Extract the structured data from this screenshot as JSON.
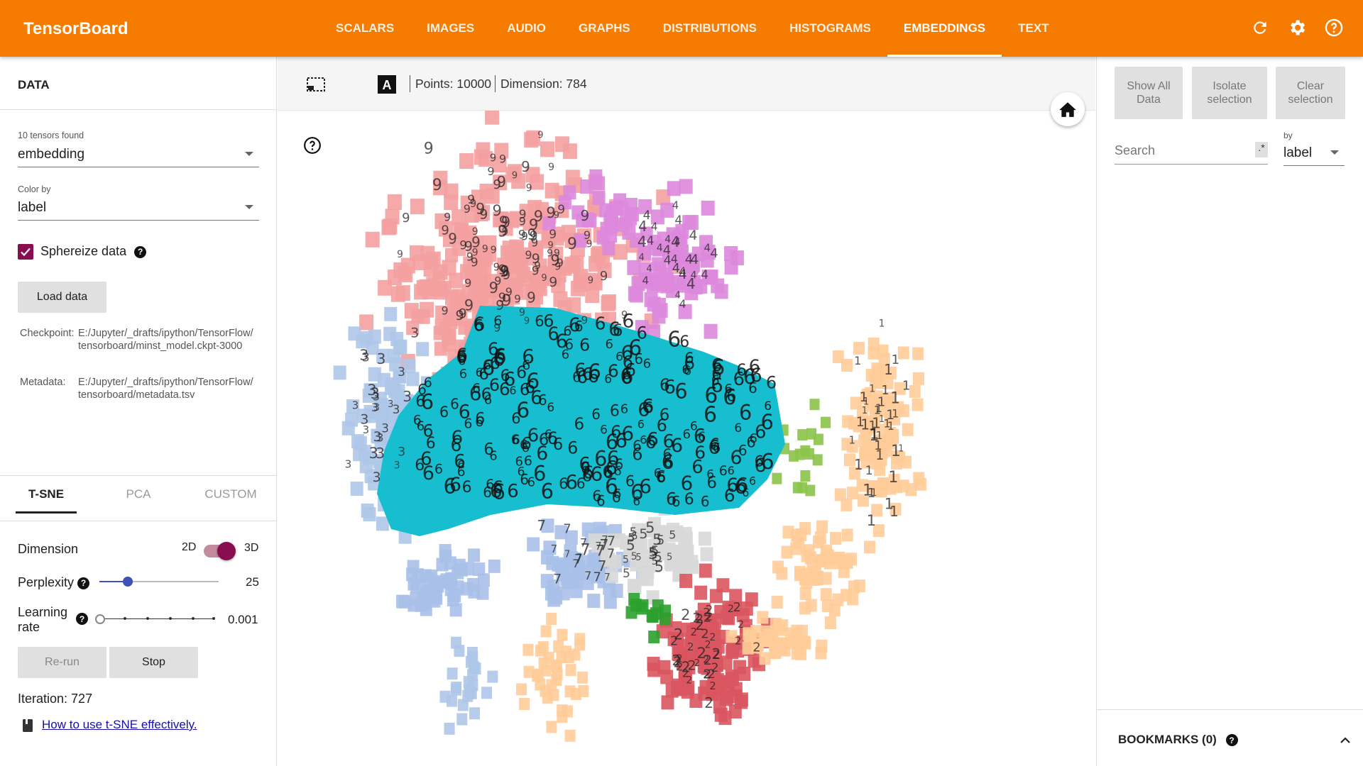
{
  "app": {
    "title": "TensorBoard"
  },
  "nav": [
    "SCALARS",
    "IMAGES",
    "AUDIO",
    "GRAPHS",
    "DISTRIBUTIONS",
    "HISTOGRAMS",
    "EMBEDDINGS",
    "TEXT"
  ],
  "nav_active": "EMBEDDINGS",
  "top_icons": [
    "refresh-icon",
    "settings-icon",
    "help-icon"
  ],
  "data_panel": {
    "title": "DATA",
    "tensors_label": "10 tensors found",
    "tensor_value": "embedding",
    "color_by_label": "Color by",
    "color_by_value": "label",
    "sphereize_label": "Sphereize data",
    "sphereize_checked": true,
    "load_button": "Load data",
    "checkpoint_label": "Checkpoint:",
    "checkpoint_value": "E:/Jupyter/_drafts/ipython/TensorFlow/tensorboard/minst_model.ckpt-3000",
    "metadata_label": "Metadata:",
    "metadata_value": "E:/Jupyter/_drafts/ipython/TensorFlow/tensorboard/metadata.tsv"
  },
  "projection": {
    "tabs": [
      "T-SNE",
      "PCA",
      "CUSTOM"
    ],
    "active_tab": "T-SNE",
    "dimension_label": "Dimension",
    "dim_2d": "2D",
    "dim_3d": "3D",
    "dimension_selected": "3D",
    "perplexity_label": "Perplexity",
    "perplexity_value": "25",
    "learning_rate_label": "Learning rate",
    "learning_rate_value": "0.001",
    "rerun_button": "Re-run",
    "stop_button": "Stop",
    "iteration_label": "Iteration: 727",
    "help_link": "How to use t-SNE effectively."
  },
  "viewer": {
    "points_label": "Points: 10000",
    "dimension_label": "Dimension: 784",
    "tool_icons": [
      "box-select-icon",
      "night-mode-icon",
      "label-toggle-icon"
    ],
    "home_icon": "home-icon",
    "colors": {
      "0": "#8bc34a",
      "1": "#ffcc99",
      "2": "#d9555f",
      "3": "#aec7e8",
      "4": "#dd88dd",
      "5": "#d8d8d8",
      "6": "#17becf",
      "7": "#a8c0e8",
      "8": "#2ca02c",
      "9": "#f4a0a0"
    }
  },
  "inspector": {
    "show_all": "Show All Data",
    "isolate": "Isolate selection",
    "clear": "Clear selection",
    "search_placeholder": "Search",
    "regex_label": ".*",
    "by_label": "by",
    "by_value": "label",
    "bookmarks_label": "BOOKMARKS (0)"
  }
}
